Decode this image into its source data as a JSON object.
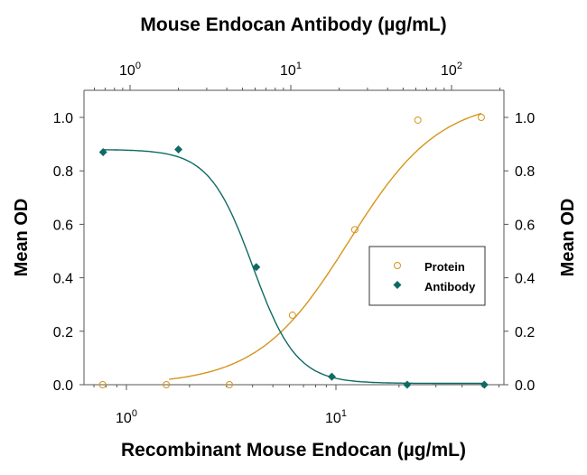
{
  "chart_data": {
    "type": "scatter",
    "title": "",
    "top_xlabel": "Mouse Endocan Antibody (µg/mL)",
    "xlabel": "Recombinant Mouse Endocan (µg/mL)",
    "ylabel": "Mean OD",
    "ylabel_right": "Mean OD",
    "xscale": "log",
    "ylim": [
      0,
      1.1
    ],
    "yticks": [
      "0.0",
      "0.2",
      "0.4",
      "0.6",
      "0.8",
      "1.0"
    ],
    "bottom_xticks": [
      "10^0",
      "10^1"
    ],
    "top_xticks": [
      "10^0",
      "10^1",
      "10^2"
    ],
    "grid": false,
    "legend_position": "center-right",
    "series": [
      {
        "name": "Protein",
        "axis": "bottom",
        "marker": "open-circle",
        "color": "#d4951c",
        "x": [
          0.77,
          1.55,
          3.1,
          6.2,
          12.3,
          24.6,
          49.4
        ],
        "y": [
          0.0,
          0.0,
          0.0,
          0.26,
          0.58,
          0.99,
          1.0
        ]
      },
      {
        "name": "Antibody",
        "axis": "top",
        "marker": "filled-diamond",
        "color": "#0e6b64",
        "x": [
          0.68,
          2.0,
          6.1,
          18.0,
          53.0,
          160.0
        ],
        "y": [
          0.87,
          0.88,
          0.44,
          0.03,
          0.0,
          0.0
        ]
      }
    ]
  },
  "labels": {
    "top_title": "Mouse Endocan Antibody (µg/mL)",
    "bottom_title": "Recombinant Mouse Endocan (µg/mL)",
    "left_ylabel": "Mean OD",
    "right_ylabel": "Mean OD",
    "legend_protein": "Protein",
    "legend_antibody": "Antibody"
  }
}
